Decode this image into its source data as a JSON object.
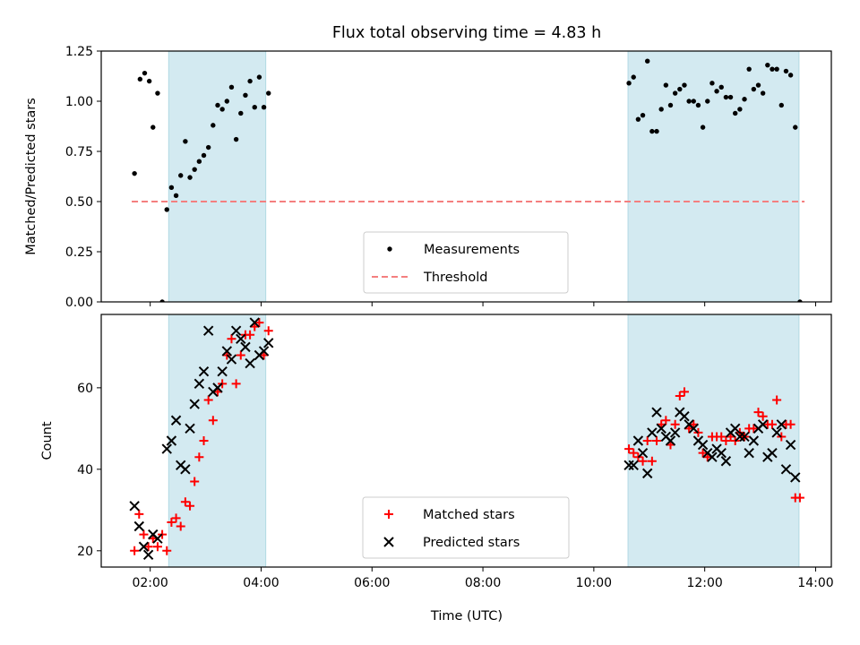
{
  "title": "Flux total observing time = 4.83 h",
  "xlabel": "Time (UTC)",
  "x_tick_labels": [
    "02:00",
    "04:00",
    "06:00",
    "08:00",
    "10:00",
    "12:00",
    "14:00"
  ],
  "chart_data": [
    {
      "type": "scatter",
      "ylabel": "Matched/Predicted stars",
      "xlim": [
        "01:07",
        "14:17"
      ],
      "ylim": [
        0,
        1.25
      ],
      "y_ticks": [
        "0.00",
        "0.25",
        "0.50",
        "0.75",
        "1.00",
        "1.25"
      ],
      "shaded_intervals": [
        [
          "02:20",
          "04:05"
        ],
        [
          "10:37",
          "13:42"
        ]
      ],
      "threshold": {
        "name": "Threshold",
        "value": 0.5,
        "x_range": [
          "01:40",
          "13:48"
        ],
        "color": "#f47f7f",
        "style": "dashed"
      },
      "legend": {
        "position": "lower center",
        "entries": [
          "Measurements",
          "Threshold"
        ]
      },
      "series": [
        {
          "name": "Measurements",
          "marker": "dot",
          "color": "#000000",
          "points": [
            [
              "01:43",
              0.64
            ],
            [
              "01:49",
              1.11
            ],
            [
              "01:54",
              1.14
            ],
            [
              "01:59",
              1.1
            ],
            [
              "02:03",
              0.87
            ],
            [
              "02:08",
              1.04
            ],
            [
              "02:13",
              0.0
            ],
            [
              "02:18",
              0.46
            ],
            [
              "02:23",
              0.57
            ],
            [
              "02:28",
              0.53
            ],
            [
              "02:33",
              0.63
            ],
            [
              "02:38",
              0.8
            ],
            [
              "02:43",
              0.62
            ],
            [
              "02:48",
              0.66
            ],
            [
              "02:53",
              0.7
            ],
            [
              "02:58",
              0.73
            ],
            [
              "03:03",
              0.77
            ],
            [
              "03:08",
              0.88
            ],
            [
              "03:13",
              0.98
            ],
            [
              "03:18",
              0.96
            ],
            [
              "03:23",
              1.0
            ],
            [
              "03:28",
              1.07
            ],
            [
              "03:33",
              0.81
            ],
            [
              "03:38",
              0.94
            ],
            [
              "03:43",
              1.03
            ],
            [
              "03:48",
              1.1
            ],
            [
              "03:53",
              0.97
            ],
            [
              "03:58",
              1.12
            ],
            [
              "04:03",
              0.97
            ],
            [
              "04:08",
              1.04
            ],
            [
              "10:38",
              1.09
            ],
            [
              "10:43",
              1.12
            ],
            [
              "10:48",
              0.91
            ],
            [
              "10:53",
              0.93
            ],
            [
              "10:58",
              1.2
            ],
            [
              "11:03",
              0.85
            ],
            [
              "11:08",
              0.85
            ],
            [
              "11:13",
              0.96
            ],
            [
              "11:18",
              1.08
            ],
            [
              "11:23",
              0.98
            ],
            [
              "11:28",
              1.04
            ],
            [
              "11:33",
              1.06
            ],
            [
              "11:38",
              1.08
            ],
            [
              "11:43",
              1.0
            ],
            [
              "11:48",
              1.0
            ],
            [
              "11:53",
              0.98
            ],
            [
              "11:58",
              0.87
            ],
            [
              "12:03",
              1.0
            ],
            [
              "12:08",
              1.09
            ],
            [
              "12:13",
              1.05
            ],
            [
              "12:18",
              1.07
            ],
            [
              "12:23",
              1.02
            ],
            [
              "12:28",
              1.02
            ],
            [
              "12:33",
              0.94
            ],
            [
              "12:38",
              0.96
            ],
            [
              "12:43",
              1.01
            ],
            [
              "12:48",
              1.16
            ],
            [
              "12:53",
              1.06
            ],
            [
              "12:58",
              1.08
            ],
            [
              "13:03",
              1.04
            ],
            [
              "13:08",
              1.18
            ],
            [
              "13:13",
              1.16
            ],
            [
              "13:18",
              1.16
            ],
            [
              "13:23",
              0.98
            ],
            [
              "13:28",
              1.15
            ],
            [
              "13:33",
              1.13
            ],
            [
              "13:38",
              0.87
            ],
            [
              "13:43",
              0.0
            ]
          ]
        }
      ]
    },
    {
      "type": "scatter",
      "ylabel": "Count",
      "xlim": [
        "01:07",
        "14:17"
      ],
      "ylim": [
        16,
        78
      ],
      "y_ticks": [
        "20",
        "40",
        "60"
      ],
      "shaded_intervals": [
        [
          "02:20",
          "04:05"
        ],
        [
          "10:37",
          "13:42"
        ]
      ],
      "legend": {
        "position": "lower center",
        "entries": [
          "Matched stars",
          "Predicted stars"
        ]
      },
      "series": [
        {
          "name": "Matched stars",
          "marker": "plus",
          "color": "#ff0000",
          "points": [
            [
              "01:43",
              20
            ],
            [
              "01:48",
              29
            ],
            [
              "01:53",
              24
            ],
            [
              "01:58",
              21
            ],
            [
              "02:03",
              23
            ],
            [
              "02:08",
              21
            ],
            [
              "02:13",
              24
            ],
            [
              "02:18",
              20
            ],
            [
              "02:23",
              27
            ],
            [
              "02:28",
              28
            ],
            [
              "02:33",
              26
            ],
            [
              "02:38",
              32
            ],
            [
              "02:43",
              31
            ],
            [
              "02:48",
              37
            ],
            [
              "02:53",
              43
            ],
            [
              "02:58",
              47
            ],
            [
              "03:03",
              57
            ],
            [
              "03:08",
              52
            ],
            [
              "03:13",
              59
            ],
            [
              "03:18",
              61
            ],
            [
              "03:23",
              68
            ],
            [
              "03:28",
              72
            ],
            [
              "03:33",
              61
            ],
            [
              "03:38",
              68
            ],
            [
              "03:43",
              73
            ],
            [
              "03:48",
              73
            ],
            [
              "03:53",
              75
            ],
            [
              "03:58",
              76
            ],
            [
              "04:03",
              68
            ],
            [
              "04:08",
              74
            ],
            [
              "10:38",
              45
            ],
            [
              "10:43",
              44
            ],
            [
              "10:48",
              43
            ],
            [
              "10:53",
              42
            ],
            [
              "10:58",
              47
            ],
            [
              "11:03",
              42
            ],
            [
              "11:08",
              47
            ],
            [
              "11:13",
              51
            ],
            [
              "11:18",
              52
            ],
            [
              "11:23",
              46
            ],
            [
              "11:28",
              51
            ],
            [
              "11:33",
              58
            ],
            [
              "11:38",
              59
            ],
            [
              "11:43",
              50
            ],
            [
              "11:48",
              51
            ],
            [
              "11:53",
              49
            ],
            [
              "11:58",
              44
            ],
            [
              "12:03",
              43
            ],
            [
              "12:08",
              48
            ],
            [
              "12:13",
              48
            ],
            [
              "12:18",
              48
            ],
            [
              "12:23",
              47
            ],
            [
              "12:28",
              48
            ],
            [
              "12:33",
              47
            ],
            [
              "12:38",
              49
            ],
            [
              "12:43",
              48
            ],
            [
              "12:48",
              50
            ],
            [
              "12:53",
              50
            ],
            [
              "12:58",
              54
            ],
            [
              "13:03",
              53
            ],
            [
              "13:08",
              51
            ],
            [
              "13:13",
              51
            ],
            [
              "13:18",
              57
            ],
            [
              "13:23",
              48
            ],
            [
              "13:28",
              51
            ],
            [
              "13:33",
              51
            ],
            [
              "13:38",
              33
            ],
            [
              "13:43",
              33
            ]
          ]
        },
        {
          "name": "Predicted stars",
          "marker": "x",
          "color": "#000000",
          "points": [
            [
              "01:43",
              31
            ],
            [
              "01:48",
              26
            ],
            [
              "01:53",
              21
            ],
            [
              "01:58",
              19
            ],
            [
              "02:03",
              24
            ],
            [
              "02:08",
              23
            ],
            [
              "02:18",
              45
            ],
            [
              "02:23",
              47
            ],
            [
              "02:28",
              52
            ],
            [
              "02:33",
              41
            ],
            [
              "02:38",
              40
            ],
            [
              "02:43",
              50
            ],
            [
              "02:48",
              56
            ],
            [
              "02:53",
              61
            ],
            [
              "02:58",
              64
            ],
            [
              "03:03",
              74
            ],
            [
              "03:08",
              59
            ],
            [
              "03:13",
              60
            ],
            [
              "03:18",
              64
            ],
            [
              "03:23",
              69
            ],
            [
              "03:28",
              67
            ],
            [
              "03:33",
              74
            ],
            [
              "03:38",
              72
            ],
            [
              "03:43",
              70
            ],
            [
              "03:48",
              66
            ],
            [
              "03:53",
              76
            ],
            [
              "03:58",
              68
            ],
            [
              "04:03",
              69
            ],
            [
              "04:08",
              71
            ],
            [
              "10:38",
              41
            ],
            [
              "10:43",
              41
            ],
            [
              "10:48",
              47
            ],
            [
              "10:53",
              44
            ],
            [
              "10:58",
              39
            ],
            [
              "11:03",
              49
            ],
            [
              "11:08",
              54
            ],
            [
              "11:13",
              50
            ],
            [
              "11:18",
              48
            ],
            [
              "11:23",
              47
            ],
            [
              "11:28",
              49
            ],
            [
              "11:33",
              54
            ],
            [
              "11:38",
              53
            ],
            [
              "11:43",
              51
            ],
            [
              "11:48",
              50
            ],
            [
              "11:53",
              47
            ],
            [
              "11:58",
              46
            ],
            [
              "12:03",
              44
            ],
            [
              "12:08",
              43
            ],
            [
              "12:13",
              45
            ],
            [
              "12:18",
              44
            ],
            [
              "12:23",
              42
            ],
            [
              "12:28",
              49
            ],
            [
              "12:33",
              50
            ],
            [
              "12:38",
              48
            ],
            [
              "12:43",
              48
            ],
            [
              "12:48",
              44
            ],
            [
              "12:53",
              47
            ],
            [
              "12:58",
              50
            ],
            [
              "13:03",
              51
            ],
            [
              "13:08",
              43
            ],
            [
              "13:13",
              44
            ],
            [
              "13:18",
              49
            ],
            [
              "13:23",
              51
            ],
            [
              "13:28",
              40
            ],
            [
              "13:33",
              46
            ],
            [
              "13:38",
              38
            ]
          ]
        }
      ]
    }
  ],
  "colors": {
    "shade": "#d3eaf1",
    "shade_edge": "#b2d9e3"
  }
}
